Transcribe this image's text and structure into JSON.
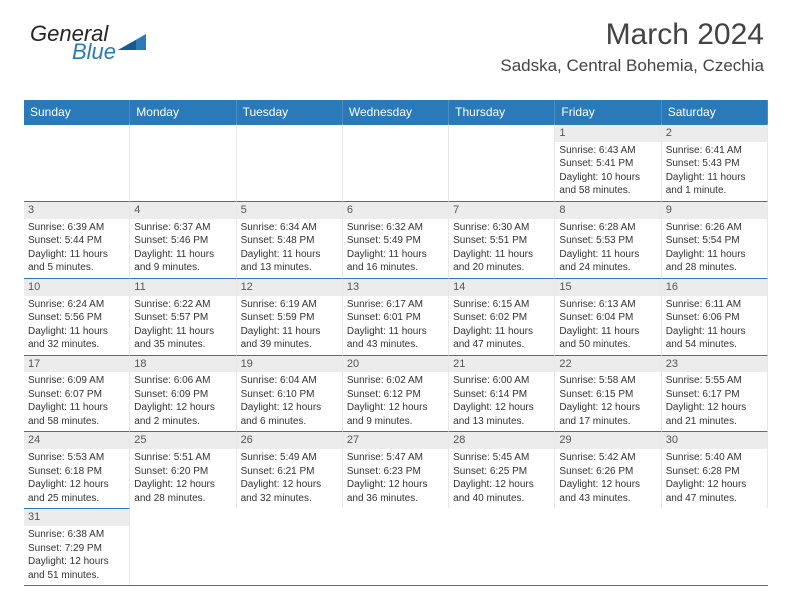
{
  "logo": {
    "general": "General",
    "blue": "Blue",
    "triangle_color": "#2a7ab9"
  },
  "header": {
    "title": "March 2024",
    "location": "Sadska, Central Bohemia, Czechia"
  },
  "colors": {
    "header_bg": "#2a7ab9",
    "header_fg": "#ffffff",
    "grid_line": "#2a7ab9",
    "daynum_bg": "#ececec"
  },
  "dayNames": [
    "Sunday",
    "Monday",
    "Tuesday",
    "Wednesday",
    "Thursday",
    "Friday",
    "Saturday"
  ],
  "blankLeading": 5,
  "days": [
    {
      "n": "1",
      "sr": "Sunrise: 6:43 AM",
      "ss": "Sunset: 5:41 PM",
      "dl": "Daylight: 10 hours and 58 minutes."
    },
    {
      "n": "2",
      "sr": "Sunrise: 6:41 AM",
      "ss": "Sunset: 5:43 PM",
      "dl": "Daylight: 11 hours and 1 minute."
    },
    {
      "n": "3",
      "sr": "Sunrise: 6:39 AM",
      "ss": "Sunset: 5:44 PM",
      "dl": "Daylight: 11 hours and 5 minutes."
    },
    {
      "n": "4",
      "sr": "Sunrise: 6:37 AM",
      "ss": "Sunset: 5:46 PM",
      "dl": "Daylight: 11 hours and 9 minutes."
    },
    {
      "n": "5",
      "sr": "Sunrise: 6:34 AM",
      "ss": "Sunset: 5:48 PM",
      "dl": "Daylight: 11 hours and 13 minutes."
    },
    {
      "n": "6",
      "sr": "Sunrise: 6:32 AM",
      "ss": "Sunset: 5:49 PM",
      "dl": "Daylight: 11 hours and 16 minutes."
    },
    {
      "n": "7",
      "sr": "Sunrise: 6:30 AM",
      "ss": "Sunset: 5:51 PM",
      "dl": "Daylight: 11 hours and 20 minutes."
    },
    {
      "n": "8",
      "sr": "Sunrise: 6:28 AM",
      "ss": "Sunset: 5:53 PM",
      "dl": "Daylight: 11 hours and 24 minutes."
    },
    {
      "n": "9",
      "sr": "Sunrise: 6:26 AM",
      "ss": "Sunset: 5:54 PM",
      "dl": "Daylight: 11 hours and 28 minutes."
    },
    {
      "n": "10",
      "sr": "Sunrise: 6:24 AM",
      "ss": "Sunset: 5:56 PM",
      "dl": "Daylight: 11 hours and 32 minutes."
    },
    {
      "n": "11",
      "sr": "Sunrise: 6:22 AM",
      "ss": "Sunset: 5:57 PM",
      "dl": "Daylight: 11 hours and 35 minutes."
    },
    {
      "n": "12",
      "sr": "Sunrise: 6:19 AM",
      "ss": "Sunset: 5:59 PM",
      "dl": "Daylight: 11 hours and 39 minutes."
    },
    {
      "n": "13",
      "sr": "Sunrise: 6:17 AM",
      "ss": "Sunset: 6:01 PM",
      "dl": "Daylight: 11 hours and 43 minutes."
    },
    {
      "n": "14",
      "sr": "Sunrise: 6:15 AM",
      "ss": "Sunset: 6:02 PM",
      "dl": "Daylight: 11 hours and 47 minutes."
    },
    {
      "n": "15",
      "sr": "Sunrise: 6:13 AM",
      "ss": "Sunset: 6:04 PM",
      "dl": "Daylight: 11 hours and 50 minutes."
    },
    {
      "n": "16",
      "sr": "Sunrise: 6:11 AM",
      "ss": "Sunset: 6:06 PM",
      "dl": "Daylight: 11 hours and 54 minutes."
    },
    {
      "n": "17",
      "sr": "Sunrise: 6:09 AM",
      "ss": "Sunset: 6:07 PM",
      "dl": "Daylight: 11 hours and 58 minutes."
    },
    {
      "n": "18",
      "sr": "Sunrise: 6:06 AM",
      "ss": "Sunset: 6:09 PM",
      "dl": "Daylight: 12 hours and 2 minutes."
    },
    {
      "n": "19",
      "sr": "Sunrise: 6:04 AM",
      "ss": "Sunset: 6:10 PM",
      "dl": "Daylight: 12 hours and 6 minutes."
    },
    {
      "n": "20",
      "sr": "Sunrise: 6:02 AM",
      "ss": "Sunset: 6:12 PM",
      "dl": "Daylight: 12 hours and 9 minutes."
    },
    {
      "n": "21",
      "sr": "Sunrise: 6:00 AM",
      "ss": "Sunset: 6:14 PM",
      "dl": "Daylight: 12 hours and 13 minutes."
    },
    {
      "n": "22",
      "sr": "Sunrise: 5:58 AM",
      "ss": "Sunset: 6:15 PM",
      "dl": "Daylight: 12 hours and 17 minutes."
    },
    {
      "n": "23",
      "sr": "Sunrise: 5:55 AM",
      "ss": "Sunset: 6:17 PM",
      "dl": "Daylight: 12 hours and 21 minutes."
    },
    {
      "n": "24",
      "sr": "Sunrise: 5:53 AM",
      "ss": "Sunset: 6:18 PM",
      "dl": "Daylight: 12 hours and 25 minutes."
    },
    {
      "n": "25",
      "sr": "Sunrise: 5:51 AM",
      "ss": "Sunset: 6:20 PM",
      "dl": "Daylight: 12 hours and 28 minutes."
    },
    {
      "n": "26",
      "sr": "Sunrise: 5:49 AM",
      "ss": "Sunset: 6:21 PM",
      "dl": "Daylight: 12 hours and 32 minutes."
    },
    {
      "n": "27",
      "sr": "Sunrise: 5:47 AM",
      "ss": "Sunset: 6:23 PM",
      "dl": "Daylight: 12 hours and 36 minutes."
    },
    {
      "n": "28",
      "sr": "Sunrise: 5:45 AM",
      "ss": "Sunset: 6:25 PM",
      "dl": "Daylight: 12 hours and 40 minutes."
    },
    {
      "n": "29",
      "sr": "Sunrise: 5:42 AM",
      "ss": "Sunset: 6:26 PM",
      "dl": "Daylight: 12 hours and 43 minutes."
    },
    {
      "n": "30",
      "sr": "Sunrise: 5:40 AM",
      "ss": "Sunset: 6:28 PM",
      "dl": "Daylight: 12 hours and 47 minutes."
    },
    {
      "n": "31",
      "sr": "Sunrise: 6:38 AM",
      "ss": "Sunset: 7:29 PM",
      "dl": "Daylight: 12 hours and 51 minutes."
    }
  ]
}
